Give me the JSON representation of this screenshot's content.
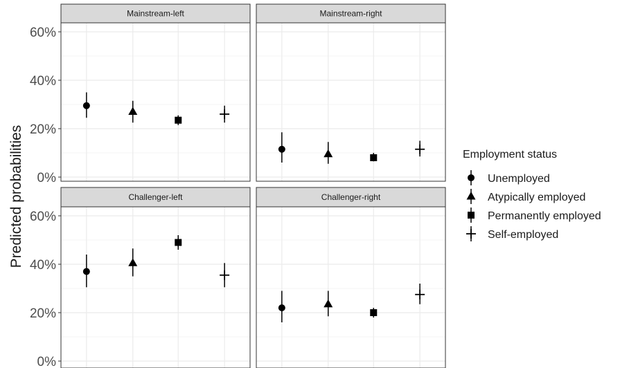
{
  "chart_data": {
    "type": "scatter",
    "subtype": "point-range faceted",
    "ylabel": "Predicted probabilities",
    "ylim": [
      0,
      60
    ],
    "y_ticks": [
      0,
      20,
      40,
      60
    ],
    "y_tick_labels": [
      "0%",
      "20%",
      "40%",
      "60%"
    ],
    "grid": true,
    "legend_title": "Employment status",
    "legend_position": "right",
    "categories": [
      "Unemployed",
      "Atypically employed",
      "Permanently employed",
      "Self-employed"
    ],
    "marker_shapes": [
      "circle",
      "triangle",
      "square",
      "plus"
    ],
    "panels": [
      {
        "title": "Mainstream-left",
        "points": [
          {
            "category": "Unemployed",
            "value": 29.5,
            "lower": 24.5,
            "upper": 35.0
          },
          {
            "category": "Atypically employed",
            "value": 27.0,
            "lower": 22.5,
            "upper": 31.5
          },
          {
            "category": "Permanently employed",
            "value": 23.5,
            "lower": 21.5,
            "upper": 25.5
          },
          {
            "category": "Self-employed",
            "value": 26.0,
            "lower": 22.5,
            "upper": 29.5
          }
        ]
      },
      {
        "title": "Mainstream-right",
        "points": [
          {
            "category": "Unemployed",
            "value": 11.5,
            "lower": 6.0,
            "upper": 18.5
          },
          {
            "category": "Atypically employed",
            "value": 9.5,
            "lower": 5.5,
            "upper": 14.5
          },
          {
            "category": "Permanently employed",
            "value": 8.0,
            "lower": 6.5,
            "upper": 10.0
          },
          {
            "category": "Self-employed",
            "value": 11.5,
            "lower": 8.5,
            "upper": 15.0
          }
        ]
      },
      {
        "title": "Challenger-left",
        "points": [
          {
            "category": "Unemployed",
            "value": 37.0,
            "lower": 30.5,
            "upper": 44.0
          },
          {
            "category": "Atypically employed",
            "value": 40.5,
            "lower": 35.0,
            "upper": 46.5
          },
          {
            "category": "Permanently employed",
            "value": 49.0,
            "lower": 46.0,
            "upper": 52.0
          },
          {
            "category": "Self-employed",
            "value": 35.5,
            "lower": 30.5,
            "upper": 40.5
          }
        ]
      },
      {
        "title": "Challenger-right",
        "points": [
          {
            "category": "Unemployed",
            "value": 22.0,
            "lower": 16.0,
            "upper": 29.0
          },
          {
            "category": "Atypically employed",
            "value": 23.5,
            "lower": 18.5,
            "upper": 29.0
          },
          {
            "category": "Permanently employed",
            "value": 20.0,
            "lower": 18.0,
            "upper": 22.0
          },
          {
            "category": "Self-employed",
            "value": 27.5,
            "lower": 23.5,
            "upper": 32.0
          }
        ]
      }
    ]
  },
  "colors": {
    "ink": "#000000",
    "strip_fill": "#d9d9d9",
    "panel_border": "#333333",
    "grid_major": "#ebebeb",
    "grid_minor": "#f5f5f5",
    "tick_text": "#4d4d4d"
  }
}
